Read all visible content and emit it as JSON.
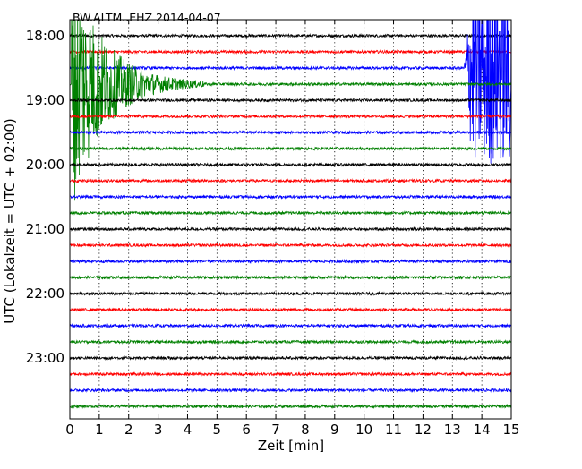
{
  "chart_data": {
    "type": "line",
    "title": "BW.ALTM..EHZ 2014-04-07",
    "xlabel": "Zeit  [min]",
    "ylabel": "UTC (Lokalzeit = UTC + 02:00)",
    "xlim": [
      0,
      15
    ],
    "x_ticks": [
      "0",
      "1",
      "2",
      "3",
      "4",
      "5",
      "6",
      "7",
      "8",
      "9",
      "10",
      "11",
      "12",
      "13",
      "14",
      "15"
    ],
    "y_ticks": [
      {
        "label": "18:00",
        "hour_offset": 0
      },
      {
        "label": "19:00",
        "hour_offset": 1
      },
      {
        "label": "20:00",
        "hour_offset": 2
      },
      {
        "label": "21:00",
        "hour_offset": 3
      },
      {
        "label": "22:00",
        "hour_offset": 4
      },
      {
        "label": "23:00",
        "hour_offset": 5
      }
    ],
    "grid": "vertical dotted at each minute",
    "trace_minutes": 15,
    "trace_count": 24,
    "colors": [
      "#000000",
      "#ff0000",
      "#0000ff",
      "#008000"
    ],
    "events": [
      {
        "trace_index": 3,
        "start_min": 0.05,
        "duration_min": 4.5,
        "peak_amplitude": 8.0
      },
      {
        "trace_index": 2,
        "start_min": 13.4,
        "duration_min": 1.6,
        "peak_amplitude": 6.0
      }
    ]
  }
}
